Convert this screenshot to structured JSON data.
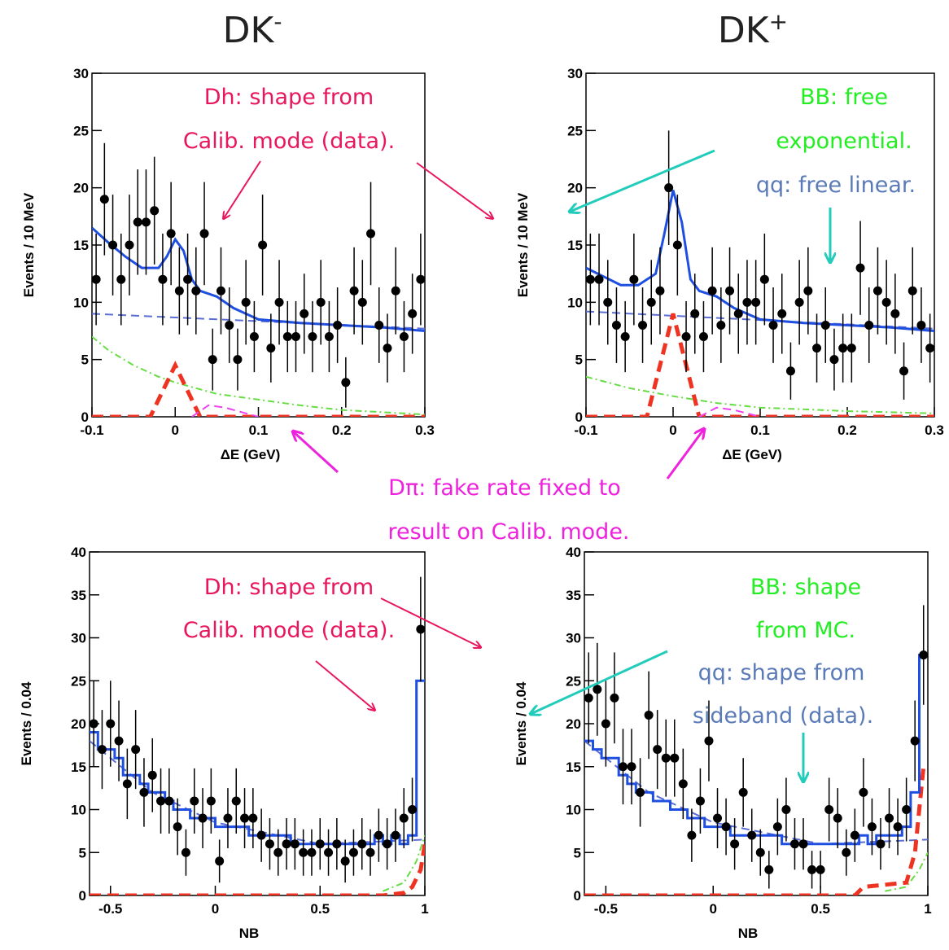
{
  "column_titles": [
    {
      "text": "DK",
      "sup": "-"
    },
    {
      "text": "DK",
      "sup": "+"
    }
  ],
  "annotations": [
    {
      "lines": [
        "Dh: shape from",
        "Calib. mode (data)."
      ],
      "color": "#e8175d"
    },
    {
      "lines": [
        "BB: free",
        "exponential."
      ],
      "color": "#22ee22"
    },
    {
      "lines": [
        "qq: free linear."
      ],
      "color": "#5a7ab8"
    },
    {
      "lines": [
        "Dπ: fake rate fixed to",
        "result on Calib. mode."
      ],
      "color": "#ee22dd"
    },
    {
      "lines": [
        "Dh: shape from",
        "Calib. mode (data)."
      ],
      "color": "#e8175d"
    },
    {
      "lines": [
        "BB: shape",
        "from MC."
      ],
      "color": "#22ee22"
    },
    {
      "lines": [
        "qq: shape from",
        "sideband (data)."
      ],
      "color": "#5a7ab8"
    }
  ],
  "chart_data": [
    {
      "type": "errorbar",
      "xlabel": "ΔE (GeV)",
      "ylabel": "Events / 10 MeV",
      "xlim": [
        -0.1,
        0.3
      ],
      "ylim": [
        0,
        30
      ],
      "xticks": [
        -0.1,
        0,
        0.1,
        0.2,
        0.3
      ],
      "yticks": [
        0,
        5,
        10,
        15,
        20,
        25,
        30
      ],
      "x": [
        -0.095,
        -0.085,
        -0.075,
        -0.065,
        -0.055,
        -0.045,
        -0.035,
        -0.025,
        -0.015,
        -0.005,
        0.005,
        0.015,
        0.025,
        0.035,
        0.045,
        0.055,
        0.065,
        0.075,
        0.085,
        0.095,
        0.105,
        0.115,
        0.125,
        0.135,
        0.145,
        0.155,
        0.165,
        0.175,
        0.185,
        0.195,
        0.205,
        0.215,
        0.225,
        0.235,
        0.245,
        0.255,
        0.265,
        0.275,
        0.285,
        0.295
      ],
      "series": [
        {
          "style": "line",
          "dash": "dashed",
          "color": "#5a6ed6",
          "x": [
            -0.1,
            0.3
          ],
          "values": [
            9,
            7.7
          ]
        },
        {
          "style": "line",
          "dash": "dashdot",
          "color": "#66dd44",
          "x": [
            -0.1,
            -0.08,
            -0.05,
            -0.02,
            0,
            0.05,
            0.1,
            0.15,
            0.2,
            0.3
          ],
          "values": [
            7,
            5.8,
            4.5,
            3.5,
            3,
            2,
            1.5,
            1,
            0.6,
            0.2
          ]
        },
        {
          "style": "line",
          "dash": "bold-dashed",
          "color": "#ee3322",
          "x": [
            -0.1,
            -0.03,
            -0.01,
            0,
            0.01,
            0.03,
            0.3
          ],
          "values": [
            0,
            0,
            3,
            4.5,
            3,
            0,
            0
          ]
        },
        {
          "style": "line",
          "dash": "dashed",
          "color": "#ee44ee",
          "x": [
            0.02,
            0.04,
            0.06,
            0.1
          ],
          "values": [
            0,
            1,
            0.8,
            0
          ]
        },
        {
          "style": "line",
          "dash": "solid",
          "color": "#1f4fe0",
          "x": [
            -0.1,
            -0.08,
            -0.06,
            -0.04,
            -0.02,
            -0.01,
            0,
            0.01,
            0.02,
            0.03,
            0.05,
            0.07,
            0.1,
            0.15,
            0.2,
            0.25,
            0.3
          ],
          "values": [
            16.5,
            15.2,
            14,
            13,
            13,
            14,
            15.5,
            14.5,
            12,
            11,
            10.5,
            9.5,
            8.5,
            8.2,
            8,
            7.8,
            7.5
          ]
        },
        {
          "style": "points",
          "color": "#000000",
          "values": [
            12,
            19,
            15,
            12,
            15,
            17,
            17,
            18,
            12,
            16,
            11,
            12,
            11,
            16,
            5,
            11,
            8,
            5,
            10,
            7,
            15,
            6,
            10,
            7,
            7,
            9,
            7,
            10,
            7,
            8,
            3,
            11,
            10,
            16,
            8,
            6,
            11,
            7,
            9,
            12
          ],
          "errors": [
            4,
            4.9,
            4.4,
            4,
            4.4,
            4.6,
            4.6,
            4.7,
            4,
            4.5,
            3.8,
            4,
            3.8,
            4.5,
            2.7,
            3.8,
            3.3,
            2.7,
            3.7,
            3.1,
            4.4,
            3,
            3.7,
            3.1,
            3.1,
            3.5,
            3.1,
            3.7,
            3.1,
            3.3,
            2.2,
            3.8,
            3.7,
            4.5,
            3.3,
            3,
            3.8,
            3.1,
            3.5,
            4
          ]
        }
      ]
    },
    {
      "type": "errorbar",
      "xlabel": "ΔE (GeV)",
      "ylabel": "Events / 10 MeV",
      "xlim": [
        -0.1,
        0.3
      ],
      "ylim": [
        0,
        30
      ],
      "xticks": [
        -0.1,
        0,
        0.1,
        0.2,
        0.3
      ],
      "yticks": [
        0,
        5,
        10,
        15,
        20,
        25,
        30
      ],
      "x": [
        -0.095,
        -0.085,
        -0.075,
        -0.065,
        -0.055,
        -0.045,
        -0.035,
        -0.025,
        -0.015,
        -0.005,
        0.005,
        0.015,
        0.025,
        0.035,
        0.045,
        0.055,
        0.065,
        0.075,
        0.085,
        0.095,
        0.105,
        0.115,
        0.125,
        0.135,
        0.145,
        0.155,
        0.165,
        0.175,
        0.185,
        0.195,
        0.205,
        0.215,
        0.225,
        0.235,
        0.245,
        0.255,
        0.265,
        0.275,
        0.285,
        0.295
      ],
      "series": [
        {
          "style": "line",
          "dash": "dashed",
          "color": "#5a6ed6",
          "x": [
            -0.1,
            0.3
          ],
          "values": [
            9.2,
            7.7
          ]
        },
        {
          "style": "line",
          "dash": "dashdot",
          "color": "#66dd44",
          "x": [
            -0.1,
            -0.05,
            0,
            0.05,
            0.1,
            0.2,
            0.3
          ],
          "values": [
            3.5,
            2.5,
            1.8,
            1.2,
            0.8,
            0.5,
            0.3
          ]
        },
        {
          "style": "line",
          "dash": "bold-dashed",
          "color": "#ee3322",
          "x": [
            -0.1,
            -0.03,
            -0.01,
            0,
            0.01,
            0.03,
            0.3
          ],
          "values": [
            0,
            0,
            6,
            9,
            6,
            0,
            0
          ]
        },
        {
          "style": "line",
          "dash": "dashed",
          "color": "#ee44ee",
          "x": [
            0.03,
            0.05,
            0.07,
            0.1
          ],
          "values": [
            0,
            0.8,
            0.6,
            0
          ]
        },
        {
          "style": "line",
          "dash": "solid",
          "color": "#1f4fe0",
          "x": [
            -0.1,
            -0.06,
            -0.04,
            -0.02,
            -0.01,
            0,
            0.01,
            0.02,
            0.03,
            0.05,
            0.07,
            0.1,
            0.15,
            0.2,
            0.25,
            0.3
          ],
          "values": [
            13,
            11.5,
            11.5,
            12.5,
            16,
            19.8,
            17,
            12,
            11,
            10.5,
            9.5,
            8.5,
            8.2,
            8,
            7.8,
            7.5
          ]
        },
        {
          "style": "points",
          "color": "#000000",
          "values": [
            12,
            12,
            10,
            8,
            7,
            12,
            8,
            10,
            11,
            20,
            15,
            7,
            9,
            7,
            11,
            8,
            11,
            9,
            10,
            10,
            12,
            8,
            9,
            4,
            10,
            11,
            6,
            8,
            5,
            6,
            6,
            13,
            8,
            11,
            10,
            9,
            4,
            11,
            8,
            6
          ],
          "errors": [
            4,
            4,
            3.7,
            3.3,
            3.1,
            4,
            3.3,
            3.7,
            3.8,
            5,
            4.4,
            3.1,
            3.5,
            3.1,
            3.8,
            3.3,
            3.8,
            3.5,
            3.7,
            3.7,
            4,
            3.3,
            3.5,
            2.5,
            3.7,
            3.8,
            3,
            3.3,
            2.7,
            3,
            3,
            4.1,
            3.3,
            3.8,
            3.7,
            3.5,
            2.5,
            3.8,
            3.3,
            3
          ]
        }
      ]
    },
    {
      "type": "errorbar",
      "xlabel": "NB",
      "ylabel": "Events / 0.04",
      "xlim": [
        -0.6,
        1
      ],
      "ylim": [
        0,
        40
      ],
      "xticks": [
        -0.5,
        0,
        0.5,
        1
      ],
      "yticks": [
        0,
        5,
        10,
        15,
        20,
        25,
        30,
        35,
        40
      ],
      "x": [
        -0.58,
        -0.54,
        -0.5,
        -0.46,
        -0.42,
        -0.38,
        -0.34,
        -0.3,
        -0.26,
        -0.22,
        -0.18,
        -0.14,
        -0.1,
        -0.06,
        -0.02,
        0.02,
        0.06,
        0.1,
        0.14,
        0.18,
        0.22,
        0.26,
        0.3,
        0.34,
        0.38,
        0.42,
        0.46,
        0.5,
        0.54,
        0.58,
        0.62,
        0.66,
        0.7,
        0.74,
        0.78,
        0.82,
        0.86,
        0.9,
        0.94,
        0.98
      ],
      "series": [
        {
          "style": "line",
          "dash": "dashed",
          "color": "#5a6ed6",
          "x": [
            -0.6,
            -0.3,
            0,
            0.5,
            1
          ],
          "values": [
            18,
            12,
            8.5,
            6,
            6.5
          ]
        },
        {
          "style": "line",
          "dash": "dashdot",
          "color": "#66dd44",
          "x": [
            0.8,
            0.9,
            0.96,
            1
          ],
          "values": [
            0.5,
            1.5,
            4,
            7
          ]
        },
        {
          "style": "line",
          "dash": "bold-dashed",
          "color": "#ee3322",
          "x": [
            -0.6,
            0.8,
            0.9,
            0.94,
            0.98,
            1
          ],
          "values": [
            0,
            0,
            0.3,
            1,
            3,
            6
          ]
        },
        {
          "style": "step",
          "dash": "solid",
          "color": "#1f4fe0",
          "values": [
            19,
            17,
            17,
            16,
            14,
            14,
            13,
            12,
            12,
            11,
            10,
            10,
            9,
            9,
            9,
            8,
            8,
            8,
            8,
            7,
            7,
            7,
            7,
            7,
            6,
            6,
            6,
            6,
            6,
            6,
            6,
            6,
            6,
            6,
            7,
            6,
            7,
            6,
            7,
            25
          ]
        },
        {
          "style": "points",
          "color": "#000000",
          "values": [
            20,
            17,
            20,
            18,
            13,
            17,
            12,
            14,
            11,
            11,
            8,
            5,
            11,
            9,
            11,
            4,
            9,
            11,
            9,
            9,
            7,
            6,
            5,
            6,
            6,
            5,
            5,
            6,
            5,
            6,
            4,
            5,
            6,
            5,
            7,
            6,
            7,
            9,
            10,
            31
          ],
          "errors": [
            5,
            4.6,
            5,
            4.7,
            4.1,
            4.6,
            4,
            4.3,
            3.8,
            3.8,
            3.3,
            2.7,
            3.8,
            3.5,
            3.8,
            2.5,
            3.5,
            3.8,
            3.5,
            3.5,
            3.1,
            3,
            2.7,
            3,
            3,
            2.7,
            2.7,
            3,
            2.7,
            3,
            2.5,
            2.7,
            3,
            2.7,
            3.1,
            3,
            3.1,
            3.5,
            3.7,
            6.1
          ]
        }
      ]
    },
    {
      "type": "errorbar",
      "xlabel": "NB",
      "ylabel": "Events / 0.04",
      "xlim": [
        -0.6,
        1
      ],
      "ylim": [
        0,
        40
      ],
      "xticks": [
        -0.5,
        0,
        0.5,
        1
      ],
      "yticks": [
        0,
        5,
        10,
        15,
        20,
        25,
        30,
        35,
        40
      ],
      "x": [
        -0.58,
        -0.54,
        -0.5,
        -0.46,
        -0.42,
        -0.38,
        -0.34,
        -0.3,
        -0.26,
        -0.22,
        -0.18,
        -0.14,
        -0.1,
        -0.06,
        -0.02,
        0.02,
        0.06,
        0.1,
        0.14,
        0.18,
        0.22,
        0.26,
        0.3,
        0.34,
        0.38,
        0.42,
        0.46,
        0.5,
        0.54,
        0.58,
        0.62,
        0.66,
        0.7,
        0.74,
        0.78,
        0.82,
        0.86,
        0.9,
        0.94,
        0.98
      ],
      "series": [
        {
          "style": "line",
          "dash": "dashed",
          "color": "#5a6ed6",
          "x": [
            -0.6,
            -0.3,
            0,
            0.5,
            1
          ],
          "values": [
            18,
            12,
            8.5,
            6,
            6.5
          ]
        },
        {
          "style": "line",
          "dash": "dashdot",
          "color": "#66dd44",
          "x": [
            0.8,
            0.9,
            0.96,
            1
          ],
          "values": [
            0.5,
            1,
            3,
            5
          ]
        },
        {
          "style": "line",
          "dash": "bold-dashed",
          "color": "#ee3322",
          "x": [
            -0.6,
            0.66,
            0.7,
            0.9,
            0.94,
            0.98,
            1
          ],
          "values": [
            0,
            0,
            1,
            1.5,
            5,
            15,
            15
          ]
        },
        {
          "style": "step",
          "dash": "solid",
          "color": "#1f4fe0",
          "values": [
            18,
            17,
            16,
            16,
            14,
            13,
            12,
            12,
            11,
            11,
            10,
            10,
            9,
            9,
            8,
            8,
            8,
            7,
            7,
            7,
            7,
            7,
            7,
            6,
            6,
            6,
            6,
            6,
            6,
            6,
            6,
            6,
            7,
            6,
            7,
            7,
            7,
            8,
            12,
            28
          ]
        },
        {
          "style": "points",
          "color": "#000000",
          "values": [
            23,
            24,
            20,
            23,
            15,
            15,
            12,
            21,
            17,
            16,
            16,
            13,
            7,
            11,
            18,
            9,
            8,
            6,
            12,
            7,
            5,
            3,
            8,
            10,
            6,
            6,
            3,
            3,
            10,
            9,
            5,
            7,
            12,
            8,
            6,
            9,
            8,
            10,
            18,
            28
          ],
          "errors": [
            5.3,
            5.4,
            5,
            5.3,
            4.4,
            4.4,
            4,
            5.1,
            4.6,
            4.5,
            4.5,
            4.1,
            3.1,
            3.8,
            4.7,
            3.5,
            3.3,
            3,
            4,
            3.1,
            2.7,
            2.2,
            3.3,
            3.7,
            3,
            3,
            2.2,
            2.2,
            3.7,
            3.5,
            2.7,
            3.1,
            4,
            3.3,
            3,
            3.5,
            3.3,
            3.7,
            4.7,
            5.8
          ]
        }
      ]
    }
  ]
}
